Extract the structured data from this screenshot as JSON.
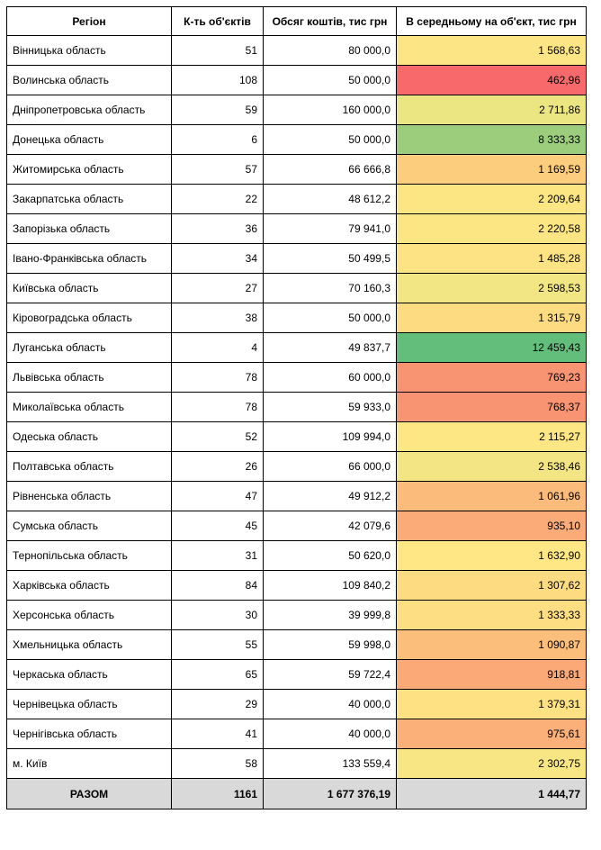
{
  "table": {
    "header": [
      "Регіон",
      "К-ть об'єктів",
      "Обсяг коштів, тис грн",
      "В середньому на об'єкт,  тис грн"
    ],
    "rows": [
      [
        "Вінницька область",
        "51",
        "80 000,0",
        "1 568,63"
      ],
      [
        "Волинська область",
        "108",
        "50 000,0",
        "462,96"
      ],
      [
        "Дніпропетровська область",
        "59",
        "160 000,0",
        "2 711,86"
      ],
      [
        "Донецька область",
        "6",
        "50 000,0",
        "8 333,33"
      ],
      [
        "Житомирська область",
        "57",
        "66 666,8",
        "1 169,59"
      ],
      [
        "Закарпатська область",
        "22",
        "48 612,2",
        "2 209,64"
      ],
      [
        "Запорізька область",
        "36",
        "79 941,0",
        "2 220,58"
      ],
      [
        "Івано-Франківська область",
        "34",
        "50 499,5",
        "1 485,28"
      ],
      [
        "Київська область",
        "27",
        "70 160,3",
        "2 598,53"
      ],
      [
        "Кіровоградська область",
        "38",
        "50 000,0",
        "1 315,79"
      ],
      [
        "Луганська область",
        "4",
        "49 837,7",
        "12 459,43"
      ],
      [
        "Львівська область",
        "78",
        "60 000,0",
        "769,23"
      ],
      [
        "Миколаївська область",
        "78",
        "59 933,0",
        "768,37"
      ],
      [
        "Одеська область",
        "52",
        "109 994,0",
        "2 115,27"
      ],
      [
        "Полтавська область",
        "26",
        "66 000,0",
        "2 538,46"
      ],
      [
        "Рівненська область",
        "47",
        "49 912,2",
        "1 061,96"
      ],
      [
        "Сумська область",
        "45",
        "42 079,6",
        "935,10"
      ],
      [
        "Тернопільська область",
        "31",
        "50 620,0",
        "1 632,90"
      ],
      [
        "Харківська область",
        "84",
        "109 840,2",
        "1 307,62"
      ],
      [
        "Херсонська область",
        "30",
        "39 999,8",
        "1 333,33"
      ],
      [
        "Хмельницька область",
        "55",
        "59 998,0",
        "1 090,87"
      ],
      [
        "Черкаська область",
        "65",
        "59 722,4",
        "918,81"
      ],
      [
        "Чернівецька область",
        "29",
        "40 000,0",
        "1 379,31"
      ],
      [
        "Чернігівська область",
        "41",
        "40 000,0",
        "975,61"
      ],
      [
        "м. Київ",
        "58",
        "133 559,4",
        "2 302,75"
      ]
    ],
    "row_colors": [
      "#fce584",
      "#f8696b",
      "#ebe582",
      "#9bcd7d",
      "#fdcd7e",
      "#fbe683",
      "#fbe683",
      "#fde383",
      "#f1e584",
      "#fddc81",
      "#63be7b",
      "#f99473",
      "#f99473",
      "#fde684",
      "#f4e584",
      "#fbbb7b",
      "#faab78",
      "#fee784",
      "#fddc81",
      "#fede82",
      "#fbbe7b",
      "#faa977",
      "#fde182",
      "#fbb079",
      "#f8e684"
    ],
    "total": [
      "РАЗОМ",
      "1161",
      "1 677 376,19",
      "1 444,77"
    ]
  }
}
